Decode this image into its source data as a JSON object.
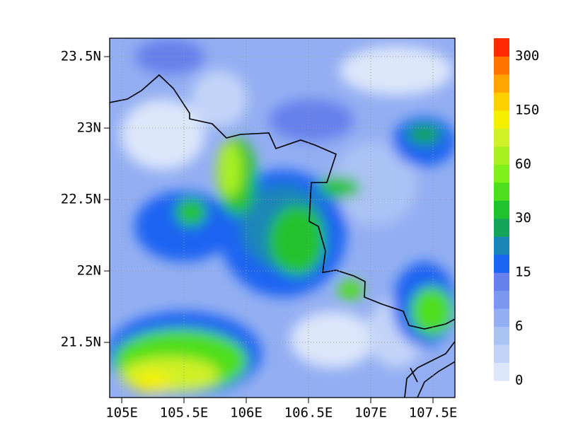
{
  "map": {
    "xlim": [
      104.903,
      107.676
    ],
    "ylim": [
      21.114,
      23.629
    ],
    "xticks": [
      {
        "value": 105,
        "label": "105E"
      },
      {
        "value": 105.5,
        "label": "105.5E"
      },
      {
        "value": 106,
        "label": "106E"
      },
      {
        "value": 106.5,
        "label": "106.5E"
      },
      {
        "value": 107,
        "label": "107E"
      },
      {
        "value": 107.5,
        "label": "107.5E"
      }
    ],
    "yticks": [
      {
        "value": 21.5,
        "label": "21.5N"
      },
      {
        "value": 22,
        "label": "22N"
      },
      {
        "value": 22.5,
        "label": "22.5N"
      },
      {
        "value": 23,
        "label": "23N"
      },
      {
        "value": 23.5,
        "label": "23.5N"
      }
    ],
    "grid": true,
    "colorbar": {
      "colors": [
        "#dce6fb",
        "#c3d4f8",
        "#abc2f5",
        "#93aef2",
        "#7b98ee",
        "#6680ec",
        "#1c64f2",
        "#1a86b8",
        "#16a45a",
        "#20c22e",
        "#4ede1e",
        "#7ef01a",
        "#a8f020",
        "#d0f028",
        "#f4f000",
        "#ffd000",
        "#ffa400",
        "#ff7400",
        "#ff2a00"
      ],
      "ticks": [
        0,
        6,
        15,
        30,
        60,
        150,
        300
      ],
      "step": 3
    }
  }
}
